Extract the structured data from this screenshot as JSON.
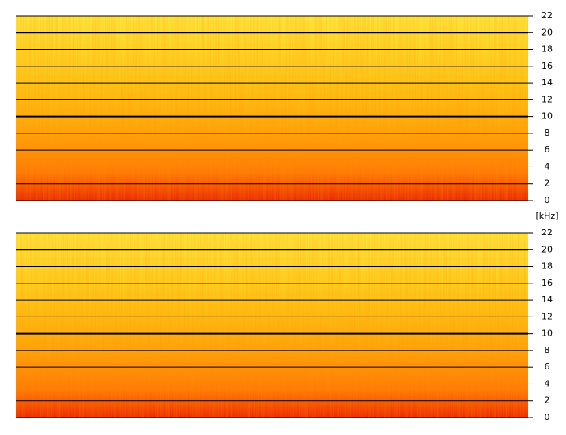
{
  "chart_data": [
    {
      "type": "spectrogram",
      "ylim": [
        0,
        22
      ],
      "yticks": [
        0,
        2,
        4,
        6,
        8,
        10,
        12,
        14,
        16,
        18,
        20,
        22
      ],
      "grid": true,
      "ylabel": "[kHz]"
    },
    {
      "type": "spectrogram",
      "ylim": [
        0,
        22
      ],
      "yticks": [
        0,
        2,
        4,
        6,
        8,
        10,
        12,
        14,
        16,
        18,
        20,
        22
      ],
      "grid": true
    }
  ]
}
